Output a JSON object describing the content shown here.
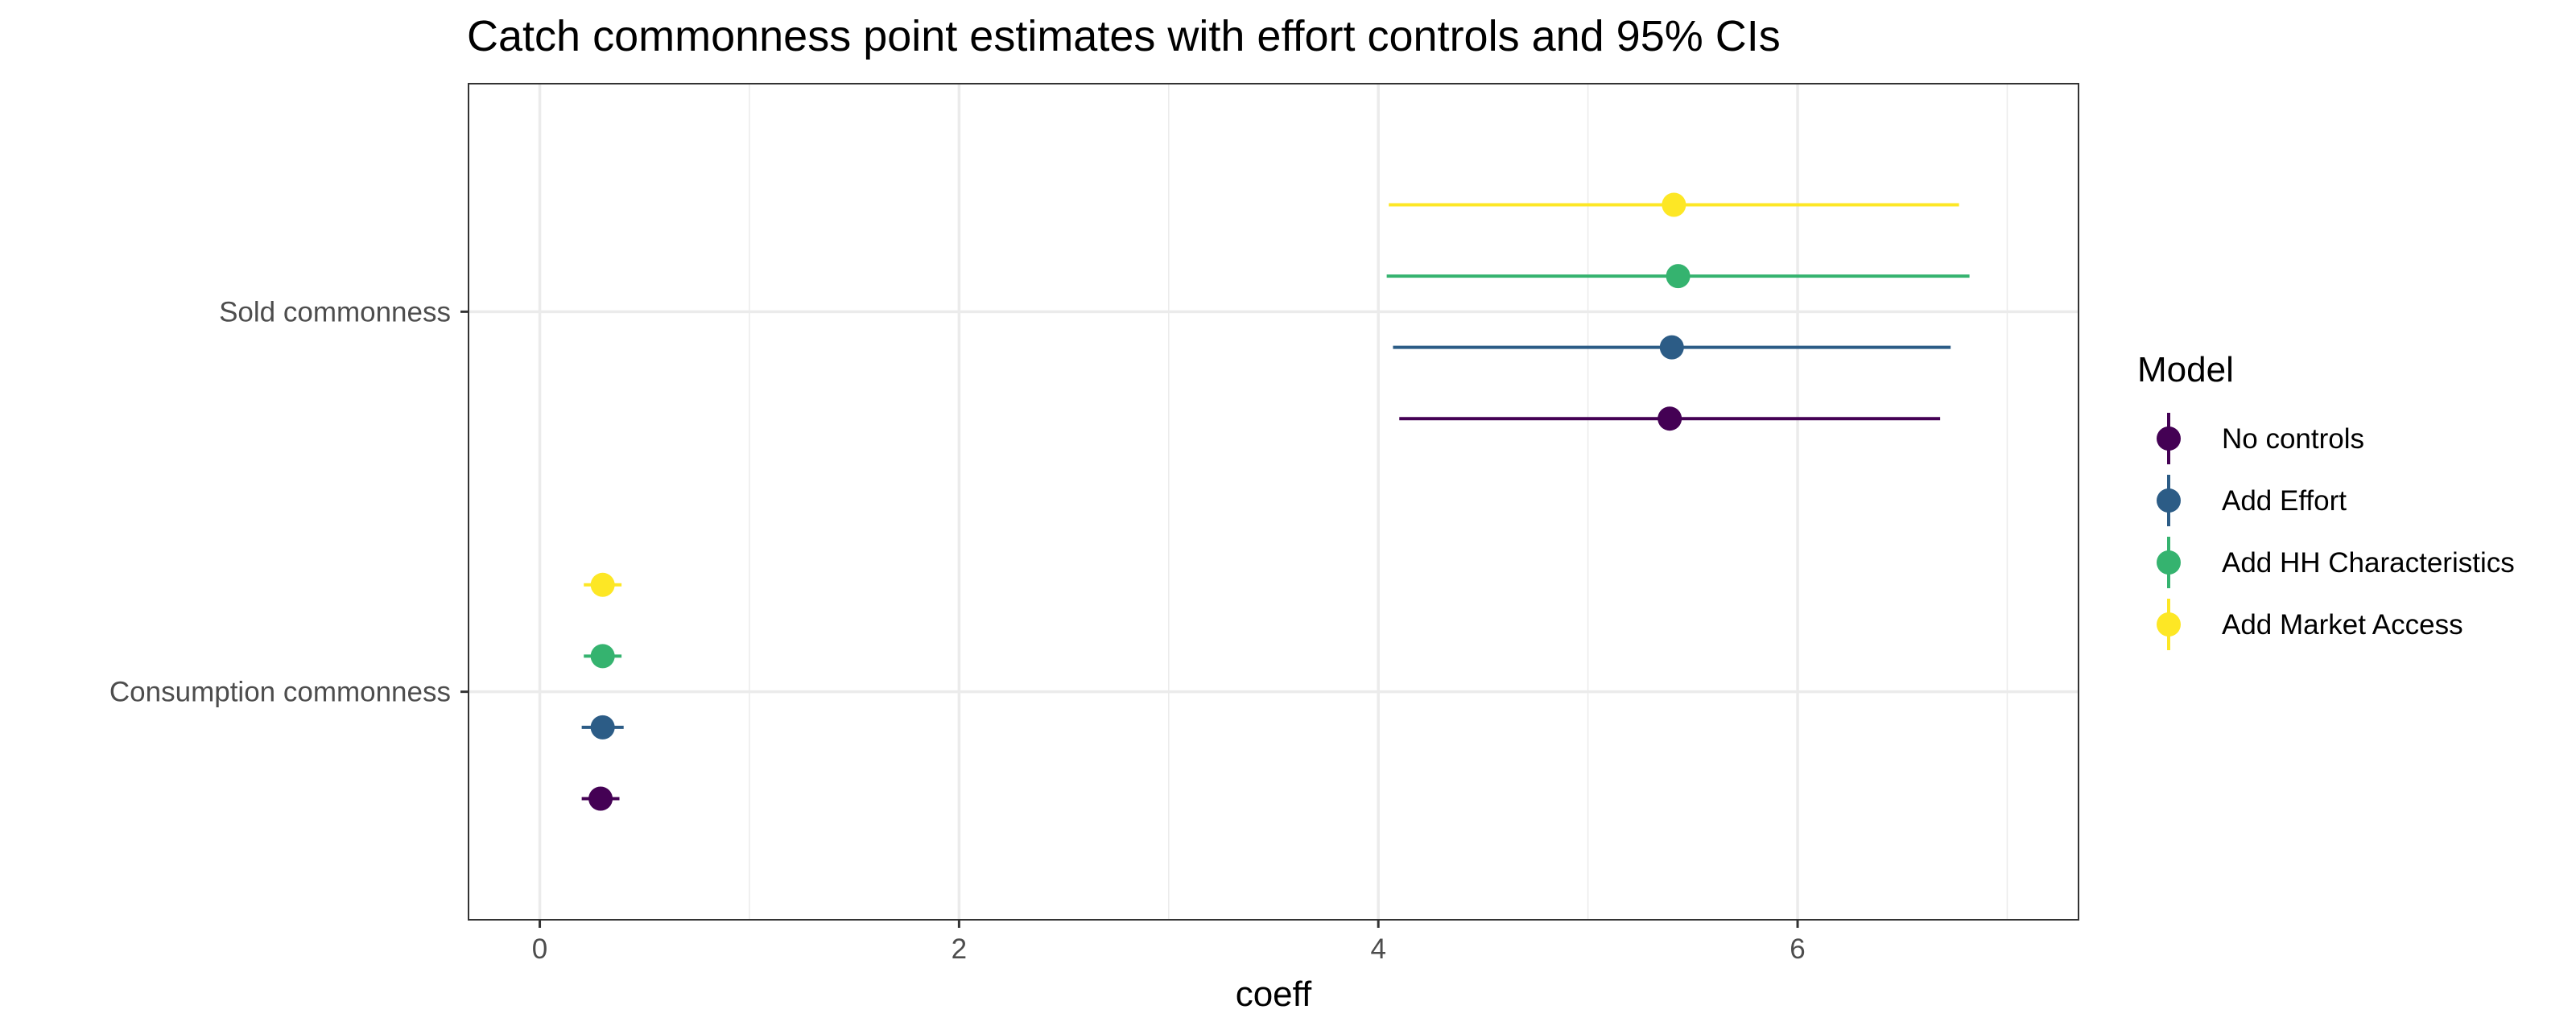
{
  "chart_data": {
    "type": "scatter",
    "title": "Catch commonness point estimates with effort controls and 95% CIs",
    "xlabel": "coeff",
    "ylabel": "",
    "xlim": [
      -0.34,
      7.34
    ],
    "x_ticks": [
      0,
      2,
      4,
      6
    ],
    "x_tick_labels": [
      "0",
      "2",
      "4",
      "6"
    ],
    "categories": [
      "Consumption commonness",
      "Sold commonness"
    ],
    "grid": true,
    "legend": {
      "title": "Model",
      "position": "right"
    },
    "series": [
      {
        "name": "No controls",
        "color": "#440154",
        "points": [
          {
            "category": "Consumption commonness",
            "estimate": 0.29,
            "ci_low": 0.2,
            "ci_high": 0.38
          },
          {
            "category": "Sold commonness",
            "estimate": 5.39,
            "ci_low": 4.1,
            "ci_high": 6.68
          }
        ]
      },
      {
        "name": "Add Effort",
        "color": "#2C5C86",
        "points": [
          {
            "category": "Consumption commonness",
            "estimate": 0.3,
            "ci_low": 0.2,
            "ci_high": 0.4
          },
          {
            "category": "Sold commonness",
            "estimate": 5.4,
            "ci_low": 4.07,
            "ci_high": 6.73
          }
        ]
      },
      {
        "name": "Add HH Characteristics",
        "color": "#35B36F",
        "points": [
          {
            "category": "Consumption commonness",
            "estimate": 0.3,
            "ci_low": 0.21,
            "ci_high": 0.39
          },
          {
            "category": "Sold commonness",
            "estimate": 5.43,
            "ci_low": 4.04,
            "ci_high": 6.82
          }
        ]
      },
      {
        "name": "Add Market Access",
        "color": "#FDE725",
        "points": [
          {
            "category": "Consumption commonness",
            "estimate": 0.3,
            "ci_low": 0.21,
            "ci_high": 0.39
          },
          {
            "category": "Sold commonness",
            "estimate": 5.41,
            "ci_low": 4.05,
            "ci_high": 6.77
          }
        ]
      }
    ]
  }
}
